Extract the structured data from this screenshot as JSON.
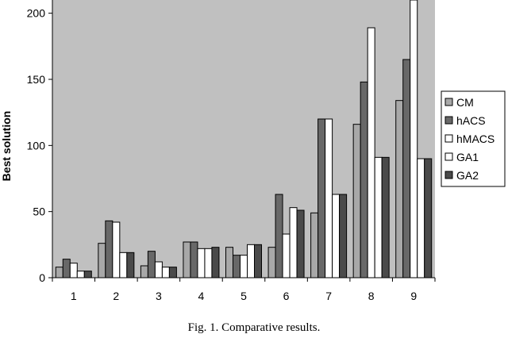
{
  "chart_data": {
    "type": "bar",
    "title": "",
    "xlabel": "",
    "ylabel": "Best solution",
    "ylim": [
      0,
      210
    ],
    "yticks": [
      0,
      50,
      100,
      150,
      200
    ],
    "grid": false,
    "legend_position": "right",
    "plot_background": "#c0c0c0",
    "categories": [
      "1",
      "2",
      "3",
      "4",
      "5",
      "6",
      "7",
      "8",
      "9"
    ],
    "series": [
      {
        "name": "CM",
        "color": "#a8a8a8",
        "values": [
          8,
          26,
          9,
          27,
          23,
          23,
          49,
          116,
          134
        ]
      },
      {
        "name": "hACS",
        "color": "#686868",
        "values": [
          14,
          43,
          20,
          27,
          17,
          63,
          120,
          148,
          165
        ]
      },
      {
        "name": "hMACS",
        "color": "#ffffff",
        "values": [
          11,
          42,
          12,
          22,
          17,
          33,
          120,
          189,
          210
        ]
      },
      {
        "name": "GA1",
        "color": "#ffffff",
        "values": [
          5,
          19,
          8,
          22,
          25,
          53,
          63,
          91,
          90
        ]
      },
      {
        "name": "GA2",
        "color": "#4a4a4a",
        "values": [
          5,
          19,
          8,
          23,
          25,
          51,
          63,
          91,
          90
        ]
      }
    ]
  },
  "caption": "Fig. 1. Comparative results."
}
